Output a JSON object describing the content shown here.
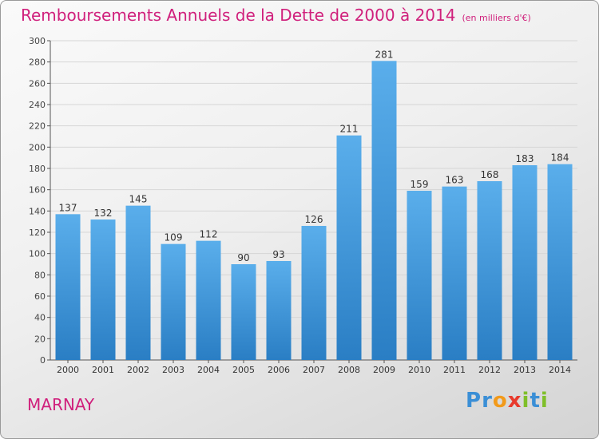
{
  "chart_data": {
    "type": "bar",
    "title": "Remboursements Annuels de la Dette de 2000 à 2014",
    "unit_note": "(en milliers d'€)",
    "categories": [
      "2000",
      "2001",
      "2002",
      "2003",
      "2004",
      "2005",
      "2006",
      "2007",
      "2008",
      "2009",
      "2010",
      "2011",
      "2012",
      "2013",
      "2014"
    ],
    "values": [
      137,
      132,
      145,
      109,
      112,
      90,
      93,
      126,
      211,
      281,
      159,
      163,
      168,
      183,
      184
    ],
    "ylim": [
      0,
      300
    ],
    "yticks": [
      0,
      20,
      40,
      60,
      80,
      100,
      120,
      140,
      160,
      180,
      200,
      220,
      240,
      260,
      280,
      300
    ],
    "grid": true,
    "legend": "none",
    "bar_color": "#3f95d8",
    "title_color": "#d0207c"
  },
  "commune": "MARNAY",
  "logo": {
    "text": "Proxiti",
    "letters": [
      "P",
      "r",
      "o",
      "x",
      "i",
      "t",
      "i"
    ],
    "colors": [
      "#3b8fd6",
      "#3b8fd6",
      "#f29a1a",
      "#e83a2c",
      "#7fbf2a",
      "#3b8fd6",
      "#7fbf2a"
    ]
  }
}
